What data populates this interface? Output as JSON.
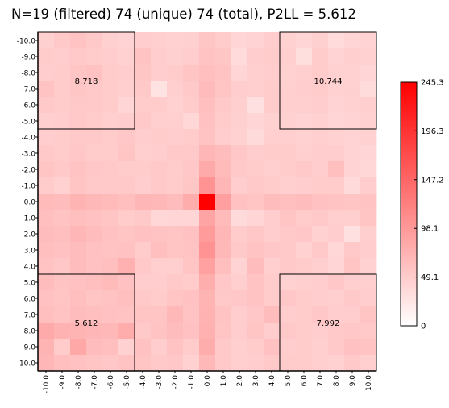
{
  "chart_data": {
    "type": "heatmap",
    "title": "N=19 (filtered) 74 (unique) 74 (total), P2LL = 5.612",
    "xlabel": "",
    "ylabel": "",
    "x_ticks": [
      "-10.0",
      "-9.0",
      "-8.0",
      "-7.0",
      "-6.0",
      "-5.0",
      "-4.0",
      "-3.0",
      "-2.0",
      "-1.0",
      "0.0",
      "1.0",
      "2.0",
      "3.0",
      "4.0",
      "5.0",
      "6.0",
      "7.0",
      "8.0",
      "9.0",
      "10.0"
    ],
    "y_ticks": [
      "-10.0",
      "-9.0",
      "-8.0",
      "-7.0",
      "-6.0",
      "-5.0",
      "-4.0",
      "-3.0",
      "-2.0",
      "-1.0",
      "0.0",
      "1.0",
      "2.0",
      "3.0",
      "4.0",
      "5.0",
      "6.0",
      "7.0",
      "8.0",
      "9.0",
      "10.0"
    ],
    "y_order": "top-to-bottom",
    "colorbar": {
      "min": 0,
      "max": 245.3,
      "ticks": [
        "245.3",
        "196.3",
        "147.2",
        "98.1",
        "49.1",
        "0"
      ],
      "tick_values": [
        245.3,
        196.3,
        147.2,
        98.1,
        49.1,
        0
      ],
      "color_low": "#ffffff",
      "color_high": "#ff0000"
    },
    "quadrant_boxes": [
      {
        "x_range": [
          -10,
          -5
        ],
        "y_range": [
          -10,
          -5
        ],
        "label": "8.718"
      },
      {
        "x_range": [
          5,
          10
        ],
        "y_range": [
          -10,
          -5
        ],
        "label": "10.744"
      },
      {
        "x_range": [
          -10,
          -5
        ],
        "y_range": [
          5,
          10
        ],
        "label": "5.612"
      },
      {
        "x_range": [
          5,
          10
        ],
        "y_range": [
          5,
          10
        ],
        "label": "7.992"
      }
    ],
    "values": [
      [
        45,
        52,
        58,
        52,
        45,
        42,
        48,
        46,
        44,
        45,
        55,
        50,
        40,
        42,
        48,
        44,
        40,
        45,
        35,
        40,
        42
      ],
      [
        50,
        48,
        52,
        50,
        48,
        44,
        58,
        48,
        45,
        48,
        58,
        55,
        35,
        48,
        50,
        46,
        32,
        50,
        42,
        46,
        44
      ],
      [
        48,
        50,
        56,
        60,
        50,
        48,
        55,
        48,
        50,
        56,
        62,
        58,
        40,
        46,
        48,
        44,
        46,
        50,
        45,
        44,
        40
      ],
      [
        58,
        50,
        55,
        52,
        50,
        46,
        52,
        28,
        46,
        52,
        65,
        56,
        48,
        46,
        50,
        46,
        48,
        50,
        44,
        45,
        34
      ],
      [
        52,
        50,
        52,
        52,
        50,
        40,
        50,
        50,
        44,
        50,
        62,
        52,
        46,
        30,
        50,
        46,
        46,
        48,
        42,
        44,
        46
      ],
      [
        46,
        48,
        52,
        50,
        46,
        48,
        52,
        46,
        46,
        38,
        60,
        50,
        45,
        40,
        44,
        44,
        42,
        44,
        40,
        42,
        44
      ],
      [
        48,
        50,
        52,
        52,
        50,
        54,
        48,
        50,
        48,
        50,
        58,
        48,
        44,
        36,
        46,
        46,
        44,
        46,
        44,
        42,
        44
      ],
      [
        52,
        50,
        54,
        50,
        50,
        56,
        46,
        48,
        52,
        52,
        70,
        64,
        54,
        48,
        50,
        50,
        46,
        48,
        48,
        42,
        40
      ],
      [
        56,
        52,
        58,
        54,
        52,
        50,
        50,
        52,
        50,
        54,
        82,
        66,
        52,
        50,
        46,
        50,
        52,
        48,
        62,
        42,
        38
      ],
      [
        50,
        44,
        56,
        52,
        52,
        52,
        48,
        52,
        50,
        55,
        105,
        70,
        48,
        52,
        50,
        46,
        48,
        50,
        50,
        36,
        48
      ],
      [
        66,
        64,
        72,
        68,
        66,
        62,
        70,
        68,
        64,
        80,
        245,
        92,
        60,
        56,
        64,
        62,
        64,
        60,
        58,
        56,
        58
      ],
      [
        62,
        58,
        62,
        60,
        56,
        50,
        52,
        38,
        40,
        40,
        88,
        66,
        36,
        40,
        48,
        56,
        50,
        52,
        46,
        46,
        56
      ],
      [
        64,
        62,
        70,
        64,
        60,
        56,
        60,
        58,
        56,
        60,
        96,
        70,
        50,
        54,
        48,
        52,
        54,
        44,
        48,
        30,
        46
      ],
      [
        62,
        60,
        64,
        60,
        58,
        60,
        50,
        62,
        56,
        58,
        105,
        68,
        52,
        58,
        54,
        52,
        44,
        52,
        38,
        52,
        48
      ],
      [
        58,
        54,
        64,
        60,
        62,
        76,
        52,
        46,
        46,
        56,
        90,
        62,
        42,
        64,
        46,
        52,
        50,
        46,
        40,
        56,
        44
      ],
      [
        64,
        58,
        60,
        62,
        66,
        60,
        48,
        48,
        52,
        50,
        78,
        54,
        46,
        58,
        50,
        44,
        46,
        48,
        54,
        46,
        46
      ],
      [
        60,
        56,
        62,
        56,
        58,
        62,
        52,
        50,
        56,
        60,
        72,
        52,
        54,
        58,
        50,
        54,
        50,
        48,
        46,
        52,
        48
      ],
      [
        62,
        58,
        64,
        62,
        60,
        58,
        56,
        56,
        68,
        58,
        74,
        58,
        48,
        54,
        64,
        48,
        50,
        54,
        48,
        48,
        56
      ],
      [
        82,
        74,
        72,
        70,
        68,
        80,
        52,
        58,
        64,
        60,
        76,
        56,
        48,
        56,
        48,
        52,
        50,
        48,
        52,
        54,
        52
      ],
      [
        72,
        50,
        84,
        64,
        62,
        44,
        60,
        48,
        58,
        50,
        80,
        52,
        46,
        50,
        60,
        48,
        50,
        46,
        52,
        60,
        58
      ],
      [
        70,
        62,
        60,
        56,
        54,
        58,
        56,
        52,
        54,
        44,
        68,
        52,
        46,
        48,
        52,
        50,
        50,
        46,
        44,
        52,
        46
      ]
    ]
  }
}
